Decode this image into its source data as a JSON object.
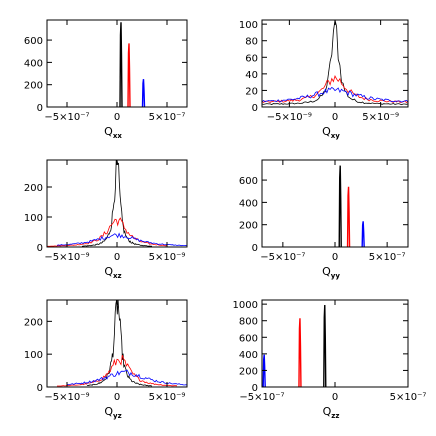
{
  "chart_data": [
    {
      "type": "line",
      "xlabel": "Q",
      "xlabel_sub": "xx",
      "xlim": [
        -7e-07,
        7e-07
      ],
      "ylim": [
        0,
        780
      ],
      "xticks": [
        {
          "v": -5e-07,
          "label": "−5×10⁻⁷"
        },
        {
          "v": 0,
          "label": "0"
        },
        {
          "v": 5e-07,
          "label": "5×10⁻⁷"
        }
      ],
      "yticks": [
        {
          "v": 0,
          "label": "0"
        },
        {
          "v": 200,
          "label": "200"
        },
        {
          "v": 400,
          "label": "400"
        },
        {
          "v": 600,
          "label": "600"
        }
      ],
      "series": [
        {
          "color": "#000000",
          "kind": "spikes",
          "spikes": [
            {
              "x": 4e-08,
              "y": 760
            }
          ]
        },
        {
          "color": "#ff0000",
          "kind": "spikes",
          "spikes": [
            {
              "x": 1.2e-07,
              "y": 570
            }
          ]
        },
        {
          "color": "#0000ff",
          "kind": "spikes",
          "spikes": [
            {
              "x": 2.65e-07,
              "y": 250
            }
          ]
        }
      ]
    },
    {
      "type": "line",
      "xlabel": "Q",
      "xlabel_sub": "xy",
      "xlim": [
        -8e-09,
        8e-09
      ],
      "ylim": [
        0,
        105
      ],
      "xticks": [
        {
          "v": -5e-09,
          "label": "−5×10⁻⁹"
        },
        {
          "v": 0,
          "label": "0"
        },
        {
          "v": 5e-09,
          "label": "5×10⁻⁹"
        }
      ],
      "yticks": [
        {
          "v": 0,
          "label": "0"
        },
        {
          "v": 20,
          "label": "20"
        },
        {
          "v": 40,
          "label": "40"
        },
        {
          "v": 60,
          "label": "60"
        },
        {
          "v": 80,
          "label": "80"
        },
        {
          "v": 100,
          "label": "100"
        }
      ],
      "series": [
        {
          "color": "#000000",
          "kind": "peak",
          "center": 0,
          "width": 5e-10,
          "height": 98,
          "base": 3,
          "xmin": -8e-09,
          "xmax": 8e-09
        },
        {
          "color": "#ff0000",
          "kind": "peak",
          "center": 0,
          "width": 1.5e-09,
          "height": 30,
          "base": 5,
          "xmin": -8e-09,
          "xmax": 8e-09
        },
        {
          "color": "#0000ff",
          "kind": "peak",
          "center": 0,
          "width": 3e-09,
          "height": 15,
          "base": 5,
          "xmin": -8e-09,
          "xmax": 8e-09
        }
      ]
    },
    {
      "type": "line",
      "xlabel": "Q",
      "xlabel_sub": "xz",
      "xlim": [
        -7e-09,
        7e-09
      ],
      "ylim": [
        0,
        290
      ],
      "xticks": [
        {
          "v": -5e-09,
          "label": "−5×10⁻⁹"
        },
        {
          "v": 0,
          "label": "0"
        },
        {
          "v": 5e-09,
          "label": "5×10⁻⁹"
        }
      ],
      "yticks": [
        {
          "v": 0,
          "label": "0"
        },
        {
          "v": 100,
          "label": "100"
        },
        {
          "v": 200,
          "label": "200"
        }
      ],
      "series": [
        {
          "color": "#000000",
          "kind": "peak",
          "center": 0,
          "width": 3.5e-10,
          "height": 280,
          "base": 0,
          "xmin": -3.5e-09,
          "xmax": 3.5e-09
        },
        {
          "color": "#ff0000",
          "kind": "peak",
          "center": 0,
          "width": 1.2e-09,
          "height": 90,
          "base": 0,
          "xmin": -7e-09,
          "xmax": 5e-09
        },
        {
          "color": "#0000ff",
          "kind": "peak",
          "center": 0,
          "width": 2.5e-09,
          "height": 40,
          "base": 0,
          "xmin": -6e-09,
          "xmax": 7e-09
        }
      ]
    },
    {
      "type": "line",
      "xlabel": "Q",
      "xlabel_sub": "yy",
      "xlim": [
        -7e-07,
        7e-07
      ],
      "ylim": [
        0,
        780
      ],
      "xticks": [
        {
          "v": -5e-07,
          "label": "−5×10⁻⁷"
        },
        {
          "v": 0,
          "label": "0"
        },
        {
          "v": 5e-07,
          "label": "5×10⁻⁷"
        }
      ],
      "yticks": [
        {
          "v": 0,
          "label": "0"
        },
        {
          "v": 200,
          "label": "200"
        },
        {
          "v": 400,
          "label": "400"
        },
        {
          "v": 600,
          "label": "600"
        }
      ],
      "series": [
        {
          "color": "#000000",
          "kind": "spikes",
          "spikes": [
            {
              "x": 5e-08,
              "y": 730
            }
          ]
        },
        {
          "color": "#ff0000",
          "kind": "spikes",
          "spikes": [
            {
              "x": 1.3e-07,
              "y": 540
            }
          ]
        },
        {
          "color": "#0000ff",
          "kind": "spikes",
          "spikes": [
            {
              "x": 2.7e-07,
              "y": 230
            }
          ]
        }
      ]
    },
    {
      "type": "line",
      "xlabel": "Q",
      "xlabel_sub": "yz",
      "xlim": [
        -7e-09,
        7e-09
      ],
      "ylim": [
        0,
        265
      ],
      "xticks": [
        {
          "v": -5e-09,
          "label": "−5×10⁻⁹"
        },
        {
          "v": 0,
          "label": "0"
        },
        {
          "v": 5e-09,
          "label": "5×10⁻⁹"
        }
      ],
      "yticks": [
        {
          "v": 0,
          "label": "0"
        },
        {
          "v": 100,
          "label": "100"
        },
        {
          "v": 200,
          "label": "200"
        }
      ],
      "series": [
        {
          "color": "#000000",
          "kind": "peak",
          "center": 5e-11,
          "width": 4e-10,
          "height": 255,
          "base": 0,
          "xmin": -3e-09,
          "xmax": 3.5e-09
        },
        {
          "color": "#ff0000",
          "kind": "peak",
          "center": 3e-10,
          "width": 1.2e-09,
          "height": 85,
          "base": 0,
          "xmin": -6e-09,
          "xmax": 6e-09
        },
        {
          "color": "#0000ff",
          "kind": "peak",
          "center": 8e-10,
          "width": 2.6e-09,
          "height": 45,
          "base": 0,
          "xmin": -5e-09,
          "xmax": 7e-09
        }
      ]
    },
    {
      "type": "line",
      "xlabel": "Q",
      "xlabel_sub": "zz",
      "xlim": [
        -5e-07,
        5e-07
      ],
      "ylim": [
        0,
        1050
      ],
      "xticks": [
        {
          "v": -5e-07,
          "label": "−5×10⁻⁷"
        },
        {
          "v": 0,
          "label": "0"
        },
        {
          "v": 5e-07,
          "label": "5×10⁻⁷"
        }
      ],
      "yticks": [
        {
          "v": 0,
          "label": "0"
        },
        {
          "v": 200,
          "label": "200"
        },
        {
          "v": 400,
          "label": "400"
        },
        {
          "v": 600,
          "label": "600"
        },
        {
          "v": 800,
          "label": "800"
        },
        {
          "v": 1000,
          "label": "1000"
        }
      ],
      "series": [
        {
          "color": "#000000",
          "kind": "spikes",
          "spikes": [
            {
              "x": -7e-08,
              "y": 990
            }
          ]
        },
        {
          "color": "#ff0000",
          "kind": "spikes",
          "spikes": [
            {
              "x": -2.4e-07,
              "y": 830
            }
          ]
        },
        {
          "color": "#0000ff",
          "kind": "spikes",
          "spikes": [
            {
              "x": -4.85e-07,
              "y": 390
            }
          ]
        }
      ]
    }
  ]
}
